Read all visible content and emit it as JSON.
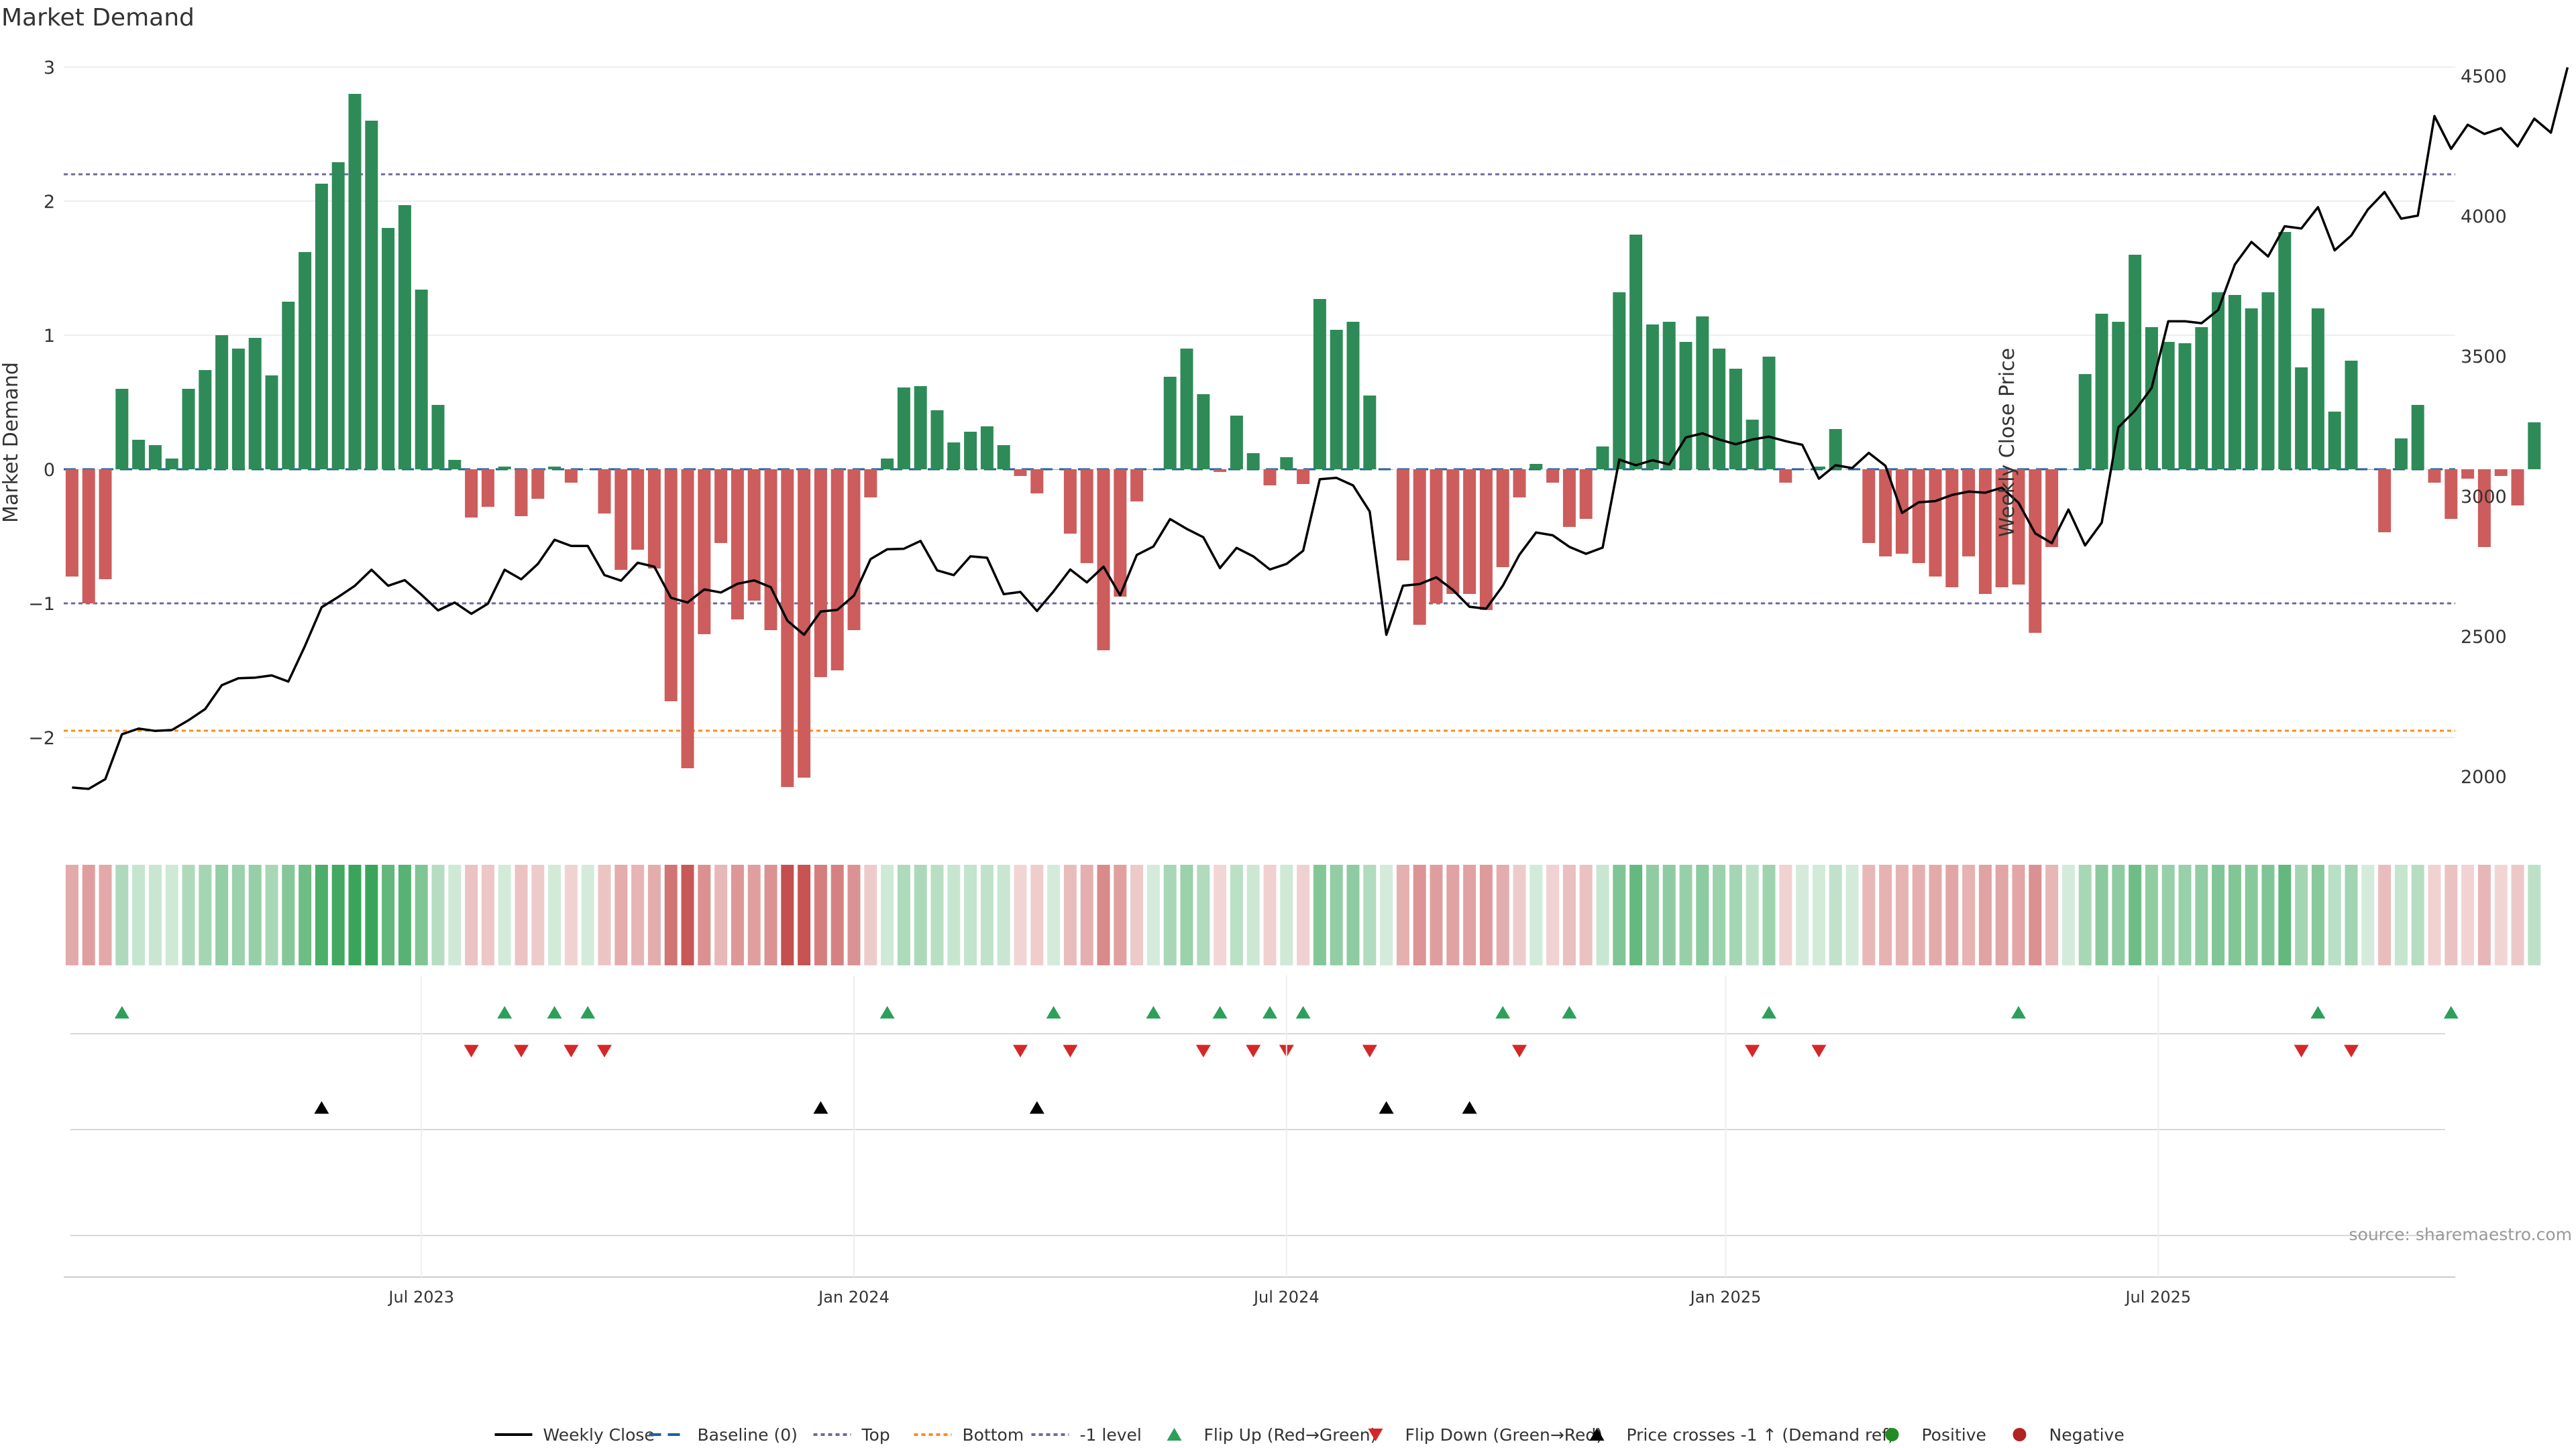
{
  "chart_data": {
    "type": "bar",
    "title": "Market Demand",
    "ylabel_left": "Market Demand",
    "ylabel_right": "Weekly Close Price",
    "left_ylim": [
      -2.65,
      3.0
    ],
    "right_ylim": [
      1820,
      4560
    ],
    "left_ticks": [
      3,
      2,
      1,
      0,
      -1,
      -2
    ],
    "left_tick_labels": [
      "3",
      "2",
      "1",
      "0",
      "−1",
      "−2"
    ],
    "right_ticks": [
      4500,
      4000,
      3500,
      3000,
      2500,
      2000
    ],
    "right_tick_labels": [
      "4500",
      "4000",
      "3500",
      "3000",
      "2500",
      "2000"
    ],
    "x_tick_labels": [
      "Jul 2023",
      "Jan 2024",
      "Jul 2024",
      "Jan 2025",
      "Jul 2025"
    ],
    "x_tick_weeks": [
      21,
      47,
      73,
      99.4,
      125.4
    ],
    "reference_lines": {
      "top": 2.2,
      "bottom": -1.95,
      "minus_one": -1.0,
      "baseline": 0
    },
    "demand": [
      -0.8,
      -1.0,
      -0.82,
      0.6,
      0.22,
      0.18,
      0.08,
      0.6,
      0.74,
      1.0,
      0.9,
      0.98,
      0.7,
      1.25,
      1.62,
      2.13,
      2.29,
      2.8,
      2.6,
      1.8,
      1.97,
      1.34,
      0.48,
      0.07,
      -0.36,
      -0.28,
      0.02,
      -0.35,
      -0.22,
      0.02,
      -0.1,
      0.0,
      -0.33,
      -0.75,
      -0.6,
      -0.74,
      -1.73,
      -2.23,
      -1.23,
      -0.55,
      -1.12,
      -0.98,
      -1.2,
      -2.37,
      -2.3,
      -1.55,
      -1.5,
      -1.2,
      -0.21,
      0.08,
      0.61,
      0.62,
      0.44,
      0.2,
      0.28,
      0.32,
      0.18,
      -0.05,
      -0.18,
      0.0,
      -0.48,
      -0.7,
      -1.35,
      -0.95,
      -0.24,
      0.0,
      0.69,
      0.9,
      0.56,
      -0.02,
      0.4,
      0.12,
      -0.12,
      0.09,
      -0.11,
      1.27,
      1.04,
      1.1,
      0.55,
      0.0,
      -0.68,
      -1.16,
      -1.0,
      -0.93,
      -0.93,
      -1.05,
      -0.73,
      -0.21,
      0.04,
      -0.1,
      -0.43,
      -0.37,
      0.17,
      1.32,
      1.75,
      1.08,
      1.1,
      0.95,
      1.14,
      0.9,
      0.75,
      0.37,
      0.84,
      -0.1,
      0.0,
      0.02,
      0.3,
      0.0,
      -0.55,
      -0.65,
      -0.63,
      -0.7,
      -0.8,
      -0.88,
      -0.65,
      -0.93,
      -0.88,
      -0.86,
      -1.22,
      -0.58,
      0.0,
      0.71,
      1.16,
      1.1,
      1.6,
      1.06,
      0.95,
      0.94,
      1.06,
      1.32,
      1.3,
      1.2,
      1.32,
      1.77,
      0.76,
      1.2,
      0.43,
      0.81,
      0.0,
      -0.47,
      0.23,
      0.48,
      -0.1,
      -0.37,
      -0.07,
      -0.58,
      -0.05,
      -0.27,
      0.35
    ],
    "series": [
      {
        "name": "Weekly Close",
        "type": "line",
        "color": "#000000",
        "values": [
          1960,
          1955,
          1990,
          2150,
          2170,
          2162,
          2165,
          2200,
          2240,
          2325,
          2350,
          2352,
          2360,
          2338,
          2465,
          2603,
          2640,
          2680,
          2737,
          2680,
          2700,
          2648,
          2592,
          2620,
          2580,
          2616,
          2737,
          2703,
          2758,
          2844,
          2822,
          2822,
          2718,
          2698,
          2762,
          2748,
          2637,
          2620,
          2667,
          2656,
          2687,
          2699,
          2675,
          2555,
          2505,
          2588,
          2594,
          2645,
          2775,
          2810,
          2812,
          2840,
          2735,
          2718,
          2785,
          2780,
          2650,
          2658,
          2590,
          2660,
          2738,
          2692,
          2748,
          2646,
          2790,
          2820,
          2918,
          2883,
          2853,
          2743,
          2815,
          2785,
          2738,
          2758,
          2805,
          3060,
          3065,
          3038,
          2945,
          2505,
          2680,
          2686,
          2710,
          2665,
          2605,
          2598,
          2680,
          2791,
          2870,
          2860,
          2819,
          2794,
          2816,
          3130,
          3110,
          3128,
          3113,
          3209,
          3224,
          3202,
          3185,
          3202,
          3212,
          3196,
          3183,
          3062,
          3110,
          3100,
          3154,
          3108,
          2940,
          2978,
          2982,
          3004,
          3016,
          3012,
          3030,
          2976,
          2867,
          2832,
          2952,
          2824,
          2905,
          3245,
          3305,
          3386,
          3624,
          3624,
          3617,
          3664,
          3826,
          3907,
          3855,
          3963,
          3955,
          4031,
          3877,
          3930,
          4023,
          4085,
          3990,
          4001,
          4356,
          4239,
          4325,
          4292,
          4313,
          4248,
          4347,
          4297,
          4530
        ]
      },
      {
        "name": "Demand",
        "type": "bar",
        "positive_color": "#2e8b57",
        "negative_color": "#cd5c5c"
      }
    ],
    "flip_up_weeks": [
      3,
      26,
      29,
      31,
      49,
      59,
      65,
      69,
      72,
      74,
      86,
      90,
      102,
      117,
      135,
      143
    ],
    "flip_down_weeks": [
      24,
      27,
      30,
      32,
      57,
      60,
      68,
      71,
      73,
      78,
      87,
      101,
      105,
      134,
      137
    ],
    "price_cross_weeks": [
      15,
      45,
      58,
      79,
      84
    ],
    "legend": [
      "Weekly Close",
      "Baseline (0)",
      "Top",
      "Bottom",
      "-1 level",
      "Flip Up (Red→Green)",
      "Flip Down (Green→Red)",
      "Price crosses -1 ↑ (Demand ref)",
      "Positive",
      "Negative"
    ],
    "legend_position": "bottom-center",
    "source_text": "source: sharemaestro.com"
  },
  "colors": {
    "positive": "#2e8b57",
    "negative": "#cd5c5c",
    "top": "#6b6b9e",
    "bottom": "#ff8c1a",
    "baseline": "#1f5f9e",
    "flip_up": "#2ca05a",
    "flip_down": "#d62728",
    "cross": "#000000",
    "positive_dot": "#228b22",
    "negative_dot": "#b22222"
  }
}
